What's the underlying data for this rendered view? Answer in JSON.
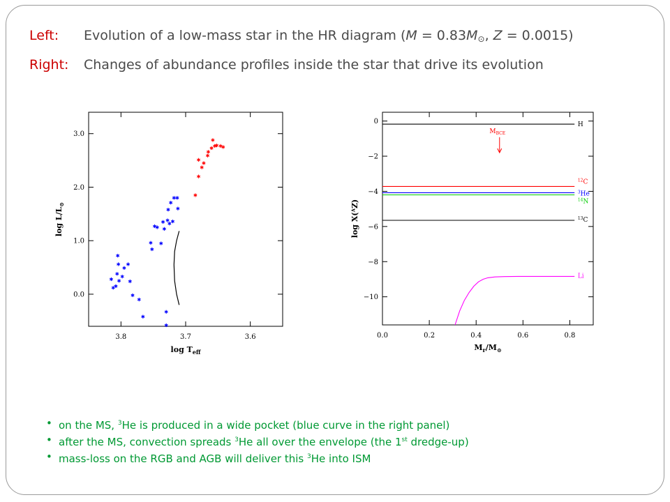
{
  "header": {
    "line1_label": "Left:",
    "line1_text_a": "Evolution of a low-mass star in the HR diagram  (",
    "line1_M": "M",
    "line1_eq1": " = 0.83",
    "line1_Msun": "M",
    "line1_sun": "⊙",
    "line1_sep": ",  ",
    "line1_Z": "Z",
    "line1_eq2": " = 0.0015)",
    "line2_label": "Right:",
    "line2_text": "Changes of abundance profiles inside the star that drive its evolution"
  },
  "bullets": [
    {
      "a": "on the MS, ",
      "sup": "3",
      "b": "He is produced in a wide pocket (blue curve in the right panel)",
      "sup2": "",
      "c": ""
    },
    {
      "a": "after the MS, convection spreads ",
      "sup": "3",
      "b": "He all over the envelope (the 1",
      "sup2": "st",
      "c": " dredge-up)"
    },
    {
      "a": "mass-loss on the RGB and AGB will deliver this ",
      "sup": "3",
      "b": "He into ISM",
      "sup2": "",
      "c": ""
    }
  ],
  "colors": {
    "title_label": "#cc0000",
    "bullet_text": "#009933",
    "blue_points": "#0000ff",
    "red_points": "#ff0000"
  },
  "chart_data": [
    {
      "type": "scatter",
      "xlabel": "log T",
      "xlabel_sub": "eff",
      "ylabel": "log L/L",
      "ylabel_sub": "⊙",
      "xlim": [
        3.85,
        3.55
      ],
      "ylim": [
        -0.6,
        3.4
      ],
      "xticks": [
        3.8,
        3.7,
        3.6
      ],
      "xtick_labels": [
        "3.8",
        "3.7",
        "3.6"
      ],
      "yticks": [
        0,
        1,
        2,
        3
      ],
      "ytick_labels": [
        "0.0",
        "1.0",
        "2.0",
        "3.0"
      ],
      "grid": false,
      "series": [
        {
          "color": "#0000ff",
          "marker": "asterisk",
          "points": [
            [
              3.815,
              0.28
            ],
            [
              3.812,
              0.12
            ],
            [
              3.808,
              0.15
            ],
            [
              3.805,
              0.72
            ],
            [
              3.804,
              0.56
            ],
            [
              3.806,
              0.38
            ],
            [
              3.803,
              0.25
            ],
            [
              3.798,
              0.33
            ],
            [
              3.795,
              0.49
            ],
            [
              3.789,
              0.56
            ],
            [
              3.786,
              0.24
            ],
            [
              3.782,
              -0.02
            ],
            [
              3.772,
              -0.1
            ],
            [
              3.766,
              -0.42
            ],
            [
              3.754,
              0.96
            ],
            [
              3.752,
              0.84
            ],
            [
              3.748,
              1.27
            ],
            [
              3.744,
              1.25
            ],
            [
              3.738,
              0.95
            ],
            [
              3.735,
              1.35
            ],
            [
              3.733,
              1.22
            ],
            [
              3.728,
              1.38
            ],
            [
              3.727,
              1.58
            ],
            [
              3.725,
              1.32
            ],
            [
              3.723,
              1.71
            ],
            [
              3.72,
              1.36
            ],
            [
              3.718,
              1.8
            ],
            [
              3.713,
              1.8
            ],
            [
              3.712,
              1.6
            ],
            [
              3.73,
              -0.33
            ],
            [
              3.73,
              -0.58
            ]
          ]
        },
        {
          "color": "#ff0000",
          "marker": "asterisk",
          "points": [
            [
              3.68,
              2.51
            ],
            [
              3.675,
              2.37
            ],
            [
              3.672,
              2.45
            ],
            [
              3.666,
              2.59
            ],
            [
              3.665,
              2.66
            ],
            [
              3.66,
              2.73
            ],
            [
              3.658,
              2.88
            ],
            [
              3.655,
              2.77
            ],
            [
              3.652,
              2.78
            ],
            [
              3.646,
              2.77
            ],
            [
              3.642,
              2.75
            ],
            [
              3.685,
              1.85
            ],
            [
              3.68,
              2.2
            ]
          ]
        },
        {
          "color": "#000000",
          "marker": "line",
          "name": "track",
          "points": [
            [
              3.71,
              -0.2
            ],
            [
              3.714,
              0.0
            ],
            [
              3.717,
              0.25
            ],
            [
              3.718,
              0.55
            ],
            [
              3.717,
              0.8
            ],
            [
              3.714,
              1.0
            ],
            [
              3.71,
              1.18
            ]
          ]
        }
      ]
    },
    {
      "type": "line",
      "xlabel": "M",
      "xlabel_sub": "r",
      "xlabel_tail": "/M",
      "xlabel_sun": "⊙",
      "ylabel": "log X(",
      "ylabel_tail": "ᴬZ)",
      "xlim": [
        0.0,
        0.9
      ],
      "ylim": [
        -11.6,
        0.5
      ],
      "xticks": [
        0.0,
        0.2,
        0.4,
        0.6,
        0.8
      ],
      "xtick_labels": [
        "0.0",
        "0.2",
        "0.4",
        "0.6",
        "0.8"
      ],
      "yticks": [
        0,
        -2,
        -4,
        -6,
        -8,
        -10
      ],
      "ytick_labels": [
        "0",
        "−2",
        "−4",
        "−6",
        "−8",
        "−10"
      ],
      "grid": false,
      "series": [
        {
          "name": "H",
          "label_sup": "",
          "label_main": "H",
          "color": "#000000",
          "x": [
            0.0,
            0.82
          ],
          "y": [
            -0.18,
            -0.18
          ]
        },
        {
          "name": "12C",
          "label_sup": "12",
          "label_main": "C",
          "color": "#ff0000",
          "x": [
            0.0,
            0.82
          ],
          "y": [
            -3.72,
            -3.72
          ]
        },
        {
          "name": "3He",
          "label_sup": "3",
          "label_main": "He",
          "color": "#0000ff",
          "x": [
            0.0,
            0.82
          ],
          "y": [
            -4.08,
            -4.08
          ]
        },
        {
          "name": "14N",
          "label_sup": "14",
          "label_main": "N",
          "color": "#00cc00",
          "x": [
            0.0,
            0.82
          ],
          "y": [
            -4.2,
            -4.2
          ]
        },
        {
          "name": "13C",
          "label_sup": "13",
          "label_main": "C",
          "color": "#000000",
          "x": [
            0.0,
            0.82
          ],
          "y": [
            -5.65,
            -5.65
          ]
        },
        {
          "name": "Li",
          "label_sup": "",
          "label_main": "Li",
          "color": "#ff00ff",
          "x": [
            0.31,
            0.33,
            0.35,
            0.37,
            0.39,
            0.41,
            0.43,
            0.45,
            0.48,
            0.52,
            0.58,
            0.65,
            0.82
          ],
          "y": [
            -11.6,
            -10.8,
            -10.2,
            -9.75,
            -9.4,
            -9.15,
            -9.0,
            -8.92,
            -8.87,
            -8.85,
            -8.84,
            -8.84,
            -8.84
          ]
        }
      ],
      "annotation": {
        "text": "M",
        "sub": "BCE",
        "color": "#ff0000",
        "arrow_x": 0.5,
        "arrow_y_from": -0.8,
        "arrow_y_to": -1.8
      }
    }
  ]
}
